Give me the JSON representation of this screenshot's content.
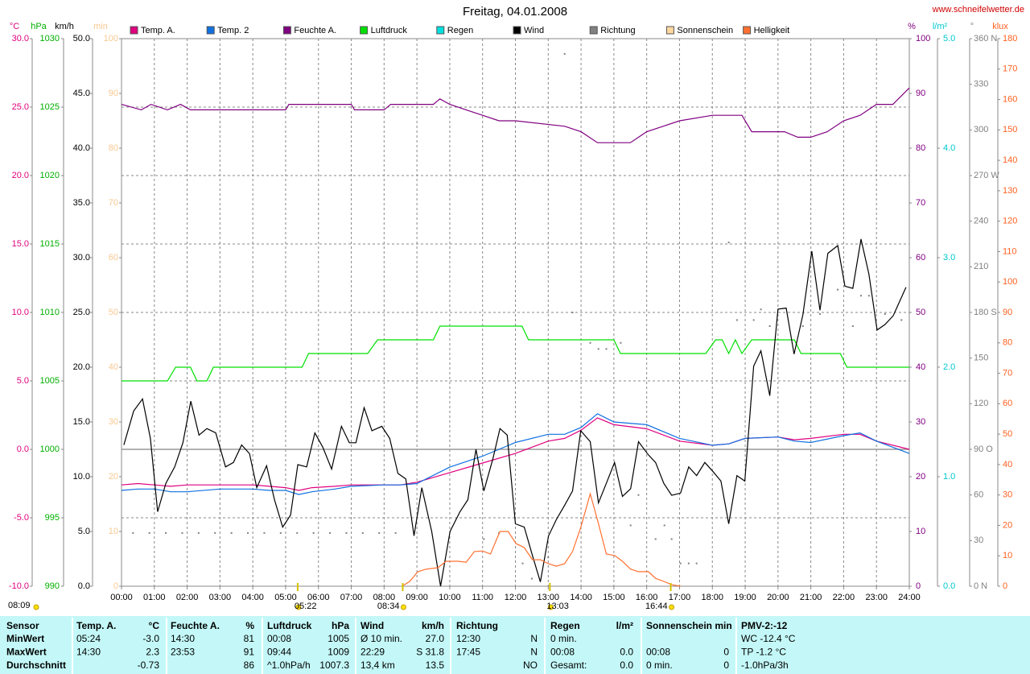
{
  "chart_data": {
    "type": "line",
    "title": "Freitag, 04.01.2008",
    "source": "www.schneifelwetter.de",
    "xlim": [
      0,
      24
    ],
    "xticks": [
      {
        "value": 0,
        "label": "00:00"
      },
      {
        "value": 1,
        "label": "01:00"
      },
      {
        "value": 2,
        "label": "02:00"
      },
      {
        "value": 3,
        "label": "03:00"
      },
      {
        "value": 4,
        "label": "04:00"
      },
      {
        "value": 5,
        "label": "05:00"
      },
      {
        "value": 6,
        "label": "06:00"
      },
      {
        "value": 7,
        "label": "07:00"
      },
      {
        "value": 8,
        "label": "08:00"
      },
      {
        "value": 9,
        "label": "09:00"
      },
      {
        "value": 10,
        "label": "10:00"
      },
      {
        "value": 11,
        "label": "11:00"
      },
      {
        "value": 12,
        "label": "12:00"
      },
      {
        "value": 13,
        "label": "13:00"
      },
      {
        "value": 14,
        "label": "14:00"
      },
      {
        "value": 15,
        "label": "15:00"
      },
      {
        "value": 16,
        "label": "16:00"
      },
      {
        "value": 17,
        "label": "17:00"
      },
      {
        "value": 18,
        "label": "18:00"
      },
      {
        "value": 19,
        "label": "19:00"
      },
      {
        "value": 20,
        "label": "20:00"
      },
      {
        "value": 21,
        "label": "21:00"
      },
      {
        "value": 22,
        "label": "22:00"
      },
      {
        "value": 23,
        "label": "23:00"
      },
      {
        "value": 24,
        "label": "24:00"
      }
    ],
    "grid": true,
    "zero_line": true,
    "axes": [
      {
        "unit": "°C",
        "color": "#e0007f",
        "ylim": [
          -10,
          30
        ],
        "yticks": [
          {
            "value": 30,
            "label": "30.0"
          },
          {
            "value": 25,
            "label": "25.0"
          },
          {
            "value": 20,
            "label": "20.0"
          },
          {
            "value": 15,
            "label": "15.0"
          },
          {
            "value": 10,
            "label": "10.0"
          },
          {
            "value": 5,
            "label": "5.0"
          },
          {
            "value": 0,
            "label": "0.0"
          },
          {
            "value": -5,
            "label": "-5.0"
          },
          {
            "value": -10,
            "label": "-10.0"
          }
        ]
      },
      {
        "unit": "hPa",
        "color": "#00b000",
        "ylim": [
          990,
          1030
        ],
        "yticks": [
          1030,
          1025,
          1020,
          1015,
          1010,
          1005,
          1000,
          995,
          990
        ]
      },
      {
        "unit": "km/h",
        "color": "#000000",
        "ylim": [
          0,
          50
        ],
        "yticks": [
          {
            "value": 50,
            "label": "50.0"
          },
          {
            "value": 45,
            "label": "45.0"
          },
          {
            "value": 40,
            "label": "40.0"
          },
          {
            "value": 35,
            "label": "35.0"
          },
          {
            "value": 30,
            "label": "30.0"
          },
          {
            "value": 25,
            "label": "25.0"
          },
          {
            "value": 20,
            "label": "20.0"
          },
          {
            "value": 15,
            "label": "15.0"
          },
          {
            "value": 10,
            "label": "10.0"
          },
          {
            "value": 5,
            "label": "5.0"
          },
          {
            "value": 0,
            "label": "0.0"
          }
        ]
      },
      {
        "unit": "min",
        "color": "#f8c890",
        "ylim": [
          0,
          100
        ],
        "yticks": [
          100,
          90,
          80,
          70,
          60,
          50,
          40,
          30,
          20,
          10,
          0
        ]
      },
      {
        "unit": "%",
        "color": "#800080",
        "ylim": [
          0,
          100
        ],
        "yticks": [
          100,
          90,
          80,
          70,
          60,
          50,
          40,
          30,
          20,
          10,
          0
        ]
      },
      {
        "unit": "l/m²",
        "color": "#00c8d0",
        "ylim": [
          0,
          5
        ],
        "yticks": [
          {
            "value": 5,
            "label": "5.0"
          },
          {
            "value": 4,
            "label": "4.0"
          },
          {
            "value": 3,
            "label": "3.0"
          },
          {
            "value": 2,
            "label": "2.0"
          },
          {
            "value": 1,
            "label": "1.0"
          },
          {
            "value": 0,
            "label": "0.0"
          }
        ]
      },
      {
        "unit": "°",
        "color": "#808080",
        "ylim": [
          0,
          360
        ],
        "yticks": [
          {
            "value": 360,
            "label": "360 N"
          },
          330,
          300,
          {
            "value": 270,
            "label": "270 W"
          },
          240,
          210,
          {
            "value": 180,
            "label": "180 S"
          },
          150,
          120,
          {
            "value": 90,
            "label": "90 O"
          },
          60,
          30,
          {
            "value": 0,
            "label": "0 N"
          }
        ]
      },
      {
        "unit": "klux",
        "color": "#ff6020",
        "ylim": [
          0,
          180
        ],
        "yticks": [
          180,
          170,
          160,
          150,
          140,
          130,
          120,
          110,
          100,
          90,
          80,
          70,
          60,
          50,
          40,
          30,
          20,
          10,
          0
        ]
      }
    ],
    "series": [
      {
        "name": "Temp. A.",
        "color": "#e0007f",
        "axis": 0,
        "x": [
          0,
          0.5,
          1,
          1.5,
          2,
          3,
          4,
          4.5,
          5,
          5.4,
          5.8,
          6.5,
          7,
          8,
          8.5,
          9,
          10,
          11,
          12,
          13,
          13.5,
          14,
          14.5,
          15,
          16,
          17,
          18,
          18.5,
          19,
          20,
          20.5,
          21,
          22,
          22.5,
          23,
          24
        ],
        "values": [
          -2.6,
          -2.5,
          -2.6,
          -2.7,
          -2.6,
          -2.6,
          -2.6,
          -2.7,
          -2.8,
          -3.0,
          -2.8,
          -2.7,
          -2.6,
          -2.6,
          -2.6,
          -2.4,
          -1.7,
          -1.0,
          -0.3,
          0.6,
          0.8,
          1.4,
          2.3,
          1.8,
          1.5,
          0.6,
          0.3,
          0.4,
          0.8,
          0.9,
          0.7,
          0.8,
          1.1,
          1.1,
          0.6,
          0.0
        ]
      },
      {
        "name": "Temp. 2",
        "color": "#1070e0",
        "axis": 0,
        "x": [
          0,
          0.5,
          1,
          1.5,
          2,
          3,
          4,
          4.5,
          5,
          5.4,
          5.8,
          6.5,
          7,
          8,
          8.5,
          9,
          10,
          11,
          12,
          13,
          13.5,
          14,
          14.5,
          15,
          16,
          17,
          18,
          18.5,
          19,
          20,
          20.5,
          21,
          22,
          22.5,
          23,
          24
        ],
        "values": [
          -3.0,
          -2.9,
          -2.9,
          -3.1,
          -3.1,
          -2.9,
          -2.9,
          -3.0,
          -3.0,
          -3.3,
          -3.1,
          -2.9,
          -2.7,
          -2.6,
          -2.6,
          -2.5,
          -1.3,
          -0.5,
          0.5,
          1.1,
          1.1,
          1.6,
          2.6,
          2.0,
          1.8,
          0.8,
          0.3,
          0.4,
          0.8,
          0.9,
          0.6,
          0.5,
          1.0,
          1.2,
          0.6,
          -0.3
        ]
      },
      {
        "name": "Feuchte A.",
        "color": "#800080",
        "axis": 4,
        "x": [
          0,
          0.6,
          0.9,
          1.4,
          1.8,
          2.1,
          5,
          5.1,
          7,
          7.1,
          8,
          8.2,
          8.5,
          9.5,
          9.7,
          10,
          10.5,
          11,
          11.5,
          12,
          13.5,
          14,
          14.5,
          15.5,
          16,
          16.5,
          17,
          18,
          18.9,
          19.2,
          20.2,
          20.6,
          21,
          21.5,
          22,
          22.5,
          23,
          23.5,
          24
        ],
        "values": [
          88,
          87,
          88,
          87,
          88,
          87,
          87,
          88,
          88,
          87,
          87,
          88,
          88,
          88,
          89,
          88,
          87,
          86,
          85,
          85,
          84,
          83,
          81,
          81,
          83,
          84,
          85,
          86,
          86,
          83,
          83,
          82,
          82,
          83,
          85,
          86,
          88,
          88,
          91
        ]
      },
      {
        "name": "Luftdruck",
        "color": "#00e000",
        "axis": 1,
        "x": [
          0,
          1.4,
          1.65,
          2.1,
          2.3,
          2.6,
          2.8,
          5.5,
          5.7,
          7.5,
          7.8,
          9.5,
          9.7,
          12.2,
          12.4,
          15.0,
          15.2,
          17.8,
          18.1,
          18.3,
          18.5,
          18.7,
          18.9,
          19.2,
          20.5,
          20.7,
          21.9,
          22.1,
          24
        ],
        "values": [
          1005,
          1005,
          1006,
          1006,
          1005,
          1005,
          1006,
          1006,
          1007,
          1007,
          1008,
          1008,
          1009,
          1009,
          1008,
          1008,
          1007,
          1007,
          1008,
          1008,
          1007,
          1008,
          1007,
          1008,
          1008,
          1007,
          1007,
          1006,
          1006
        ]
      },
      {
        "name": "Regen",
        "color": "#00e0e0",
        "axis": 5,
        "x": [],
        "values": []
      },
      {
        "name": "Wind",
        "color": "#000000",
        "axis": 2,
        "x": [
          0.07,
          0.37,
          0.64,
          0.88,
          1.1,
          1.35,
          1.62,
          1.87,
          2.11,
          2.36,
          2.6,
          2.87,
          3.17,
          3.41,
          3.66,
          3.9,
          4.12,
          4.42,
          4.66,
          4.91,
          5.15,
          5.37,
          5.64,
          5.89,
          6.13,
          6.4,
          6.7,
          6.94,
          7.14,
          7.39,
          7.63,
          7.93,
          8.17,
          8.42,
          8.66,
          8.91,
          9.15,
          9.45,
          9.72,
          10.01,
          10.31,
          10.55,
          10.8,
          11.04,
          11.31,
          11.53,
          11.75,
          12.0,
          12.27,
          12.52,
          12.76,
          13.01,
          13.25,
          13.5,
          13.74,
          13.99,
          14.28,
          14.53,
          14.77,
          15.02,
          15.26,
          15.51,
          15.75,
          16.05,
          16.27,
          16.52,
          16.76,
          17.03,
          17.28,
          17.52,
          17.77,
          18.01,
          18.26,
          18.5,
          18.75,
          18.99,
          19.26,
          19.48,
          19.75,
          20.0,
          20.25,
          20.49,
          20.76,
          21.03,
          21.28,
          21.52,
          21.82,
          22.04,
          22.28,
          22.53,
          22.77,
          23.02,
          23.26,
          23.51,
          23.9
        ],
        "values": [
          12.9,
          16.0,
          17.1,
          13.5,
          6.8,
          9.4,
          10.9,
          13.1,
          16.9,
          13.8,
          14.4,
          14.0,
          10.9,
          11.3,
          12.9,
          12.1,
          9.0,
          11.0,
          7.9,
          5.4,
          6.5,
          11.1,
          10.9,
          14.0,
          12.7,
          10.7,
          14.6,
          13.1,
          13.1,
          16.3,
          14.2,
          14.6,
          13.5,
          10.3,
          9.8,
          4.6,
          9.0,
          5.0,
          0,
          5.0,
          6.8,
          7.9,
          12.5,
          8.7,
          11.6,
          14.4,
          13.8,
          5.7,
          5.4,
          2.8,
          0.4,
          4.6,
          6.1,
          7.4,
          8.7,
          14.2,
          13.2,
          7.6,
          9.4,
          11.3,
          8.2,
          8.9,
          13.2,
          12.0,
          11.3,
          9.4,
          8.3,
          8.5,
          10.9,
          10.1,
          11.3,
          10.5,
          9.6,
          5.7,
          10.1,
          9.6,
          20.1,
          21.5,
          17.4,
          25.3,
          25.4,
          21.2,
          24.8,
          30.6,
          25.2,
          30.4,
          31.1,
          27.4,
          27.2,
          31.7,
          28.5,
          23.4,
          23.9,
          24.7,
          27.3
        ]
      },
      {
        "name": "Richtung",
        "color": "#808080",
        "axis": 6,
        "style": "dots",
        "x": [
          0.35,
          0.85,
          1.35,
          1.85,
          2.35,
          2.85,
          3.35,
          3.85,
          4.35,
          4.85,
          5.35,
          5.85,
          6.35,
          6.85,
          7.35,
          7.85,
          8.35,
          11.04,
          11.5,
          12.22,
          12.5,
          13.0,
          13.5,
          13.74,
          14.28,
          14.53,
          14.77,
          15.21,
          15.51,
          15.75,
          16.27,
          16.54,
          16.76,
          17.03,
          17.28,
          17.52,
          18.5,
          18.75,
          19.26,
          19.48,
          19.75,
          20.76,
          21.28,
          21.82,
          22.28,
          22.53,
          22.77,
          23.26,
          23.76
        ],
        "values": [
          35,
          35,
          35,
          35,
          35,
          35,
          35,
          35,
          35,
          35,
          35,
          35,
          35,
          35,
          35,
          35,
          35,
          31,
          35,
          15,
          5,
          19,
          350,
          180,
          160,
          156,
          156,
          160,
          40,
          60,
          31,
          40,
          31,
          15,
          15,
          15,
          226,
          175,
          175,
          182,
          171,
          171,
          179,
          195,
          171,
          191,
          191,
          179,
          175
        ]
      },
      {
        "name": "Sonnenschein",
        "color": "#ffd8a0",
        "axis": 3,
        "x": [],
        "values": []
      },
      {
        "name": "Helligkeit",
        "color": "#ff7030",
        "axis": 7,
        "x": [
          8.54,
          8.78,
          9.03,
          9.28,
          9.64,
          9.89,
          10.26,
          10.5,
          10.75,
          11.0,
          11.24,
          11.53,
          11.78,
          12.02,
          12.27,
          12.52,
          12.76,
          13.0,
          13.25,
          13.5,
          13.74,
          13.99,
          14.28,
          14.53,
          14.77,
          15.02,
          15.26,
          15.51,
          15.75,
          16.05,
          16.27,
          16.52,
          16.76,
          17.03
        ],
        "values": [
          0,
          1.6,
          4.8,
          5.6,
          6.1,
          8.2,
          8.2,
          7.9,
          11.4,
          11.6,
          10.6,
          18.0,
          18.0,
          14.0,
          12.7,
          8.7,
          8.7,
          7.4,
          6.6,
          7.4,
          11.4,
          19.3,
          30.4,
          20.6,
          10.6,
          10.1,
          8.2,
          5.6,
          4.8,
          4.8,
          2.6,
          1.6,
          0.5,
          0
        ]
      }
    ],
    "sunrise": "08:09",
    "markers": [
      {
        "label": "05:22",
        "x": 5.367
      },
      {
        "label": "08:34",
        "x": 8.567
      },
      {
        "label": "13:03",
        "x": 13.05
      },
      {
        "label": "16:44",
        "x": 16.733
      }
    ]
  },
  "table": {
    "header": [
      "Sensor",
      "Temp. A.",
      "°C",
      "Feuchte A.",
      "%",
      "Luftdruck",
      "hPa",
      "Wind",
      "km/h",
      "Richtung",
      null,
      "Regen",
      "l/m²",
      "Sonnenschein min",
      null,
      "PMV-2:-12"
    ],
    "rows": [
      [
        "MinWert",
        "05:24",
        "-3.0",
        "14:30",
        "81",
        "00:08",
        "1005",
        "Ø 10 min.",
        "27.0",
        "12:30",
        "N",
        "0 min.",
        null,
        null,
        null,
        "WC -12.4 °C"
      ],
      [
        "MaxWert",
        "14:30",
        "2.3",
        "23:53",
        "91",
        "09:44",
        "1009",
        "22:29",
        "S 31.8",
        "17:45",
        "N",
        "00:08",
        "0.0",
        "00:08",
        "0",
        "TP -1.2 °C"
      ],
      [
        "Durchschnitt",
        null,
        "-0.73",
        null,
        "86",
        "^1.0hPa/h",
        "1007.3",
        "13,4 km",
        "13.5",
        null,
        "NO",
        "Gesamt:",
        "0.0",
        "0 min.",
        "0",
        "-1.0hPa/3h"
      ]
    ]
  }
}
